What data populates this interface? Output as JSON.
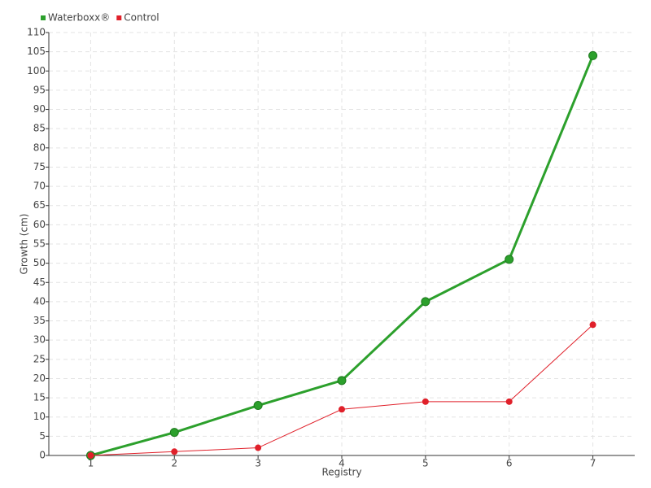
{
  "chart_data": {
    "type": "line",
    "categories": [
      "1",
      "2",
      "3",
      "4",
      "5",
      "6",
      "7"
    ],
    "series": [
      {
        "name": "Waterboxx®",
        "color": "#2ca02c",
        "values": [
          0,
          6,
          13,
          19.5,
          40,
          51,
          104
        ]
      },
      {
        "name": "Control",
        "color": "#e0202a",
        "values": [
          0,
          1,
          2,
          12,
          14,
          14,
          34
        ]
      }
    ],
    "ylim": [
      0,
      110
    ],
    "yticks": [
      0,
      5,
      10,
      15,
      20,
      25,
      30,
      35,
      40,
      45,
      50,
      55,
      60,
      65,
      70,
      75,
      80,
      85,
      90,
      95,
      100,
      105,
      110
    ],
    "y_label": "Growth (cm)",
    "x_label": "Registry",
    "grid": true,
    "legend": "top-left"
  }
}
